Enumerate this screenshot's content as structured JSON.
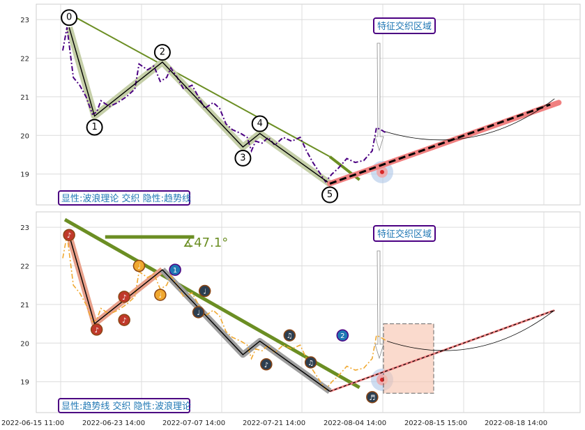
{
  "chart_data": [
    {
      "type": "line",
      "panel": "top",
      "x_tick_labels": [
        "2022-06-15 11:00",
        "2022-06-23 14:00",
        "2022-07-07 14:00",
        "2022-07-21 14:00",
        "2022-08-04 14:00",
        "2022-08-15 15:00",
        "2022-08-18 14:00"
      ],
      "y_ticks": [
        19,
        20,
        21,
        22,
        23
      ],
      "ylim": [
        18.2,
        23.4
      ],
      "grid": true,
      "label_box": "显性:波浪理论 交织 隐性:趋势线",
      "annotation": "特征交织区域",
      "wave_points": [
        {
          "label": "0",
          "x": 3,
          "y": 22.8
        },
        {
          "label": "1",
          "x": 15,
          "y": 20.5
        },
        {
          "label": "2",
          "x": 47,
          "y": 21.9
        },
        {
          "label": "3",
          "x": 85,
          "y": 19.7
        },
        {
          "label": "4",
          "x": 93,
          "y": 20.05
        },
        {
          "label": "5",
          "x": 126,
          "y": 18.75
        }
      ],
      "series": [
        {
          "values": [
            [
              0,
              22.2
            ],
            [
              2,
              22.8
            ],
            [
              5,
              21.5
            ],
            [
              8,
              21.3
            ],
            [
              11,
              21.0
            ],
            [
              14,
              20.55
            ],
            [
              16,
              20.6
            ],
            [
              18,
              20.9
            ],
            [
              22,
              20.75
            ],
            [
              26,
              20.85
            ],
            [
              30,
              21.0
            ],
            [
              34,
              21.2
            ],
            [
              36,
              21.85
            ],
            [
              40,
              21.7
            ],
            [
              43,
              21.8
            ],
            [
              46,
              21.4
            ],
            [
              49,
              21.5
            ],
            [
              51,
              21.75
            ],
            [
              54,
              21.5
            ],
            [
              57,
              21.2
            ],
            [
              61,
              21.3
            ],
            [
              64,
              21.0
            ],
            [
              67,
              20.7
            ],
            [
              71,
              20.85
            ],
            [
              74,
              20.7
            ],
            [
              77,
              20.3
            ],
            [
              80,
              20.15
            ],
            [
              84,
              20.05
            ],
            [
              87,
              19.95
            ],
            [
              89,
              19.6
            ],
            [
              91,
              19.85
            ],
            [
              94,
              19.8
            ],
            [
              97,
              19.95
            ],
            [
              100,
              19.75
            ],
            [
              104,
              19.95
            ],
            [
              108,
              19.85
            ],
            [
              112,
              19.95
            ],
            [
              115,
              19.6
            ],
            [
              118,
              19.3
            ],
            [
              121,
              19.05
            ],
            [
              124,
              18.8
            ],
            [
              127,
              19.0
            ],
            [
              130,
              19.15
            ],
            [
              134,
              19.4
            ],
            [
              138,
              19.3
            ],
            [
              142,
              19.35
            ],
            [
              146,
              19.6
            ],
            [
              148,
              20.2
            ],
            [
              150,
              20.15
            ],
            [
              153,
              20.05
            ]
          ]
        },
        {
          "name": "wave",
          "values": [
            [
              3,
              22.8
            ],
            [
              15,
              20.5
            ],
            [
              47,
              21.9
            ],
            [
              85,
              19.7
            ],
            [
              93,
              20.05
            ],
            [
              126,
              18.75
            ]
          ]
        }
      ]
    },
    {
      "type": "line",
      "panel": "bottom",
      "x_tick_labels": [
        "2022-06-15 11:00",
        "2022-06-23 14:00",
        "2022-07-07 14:00",
        "2022-07-21 14:00",
        "2022-08-04 14:00",
        "2022-08-15 15:00",
        "2022-08-18 14:00"
      ],
      "y_ticks": [
        19,
        20,
        21,
        22,
        23
      ],
      "ylim": [
        18.2,
        23.4
      ],
      "grid": true,
      "label_box": "显性:趋势线 交织 隐性:波浪理论",
      "annotation": "特征交织区域",
      "angle_label": "∡47.1°",
      "point_labels": [
        "1",
        "2"
      ]
    }
  ],
  "icons": {
    "note": "♪",
    "note2": "♩",
    "notes": "♬",
    "double": "♫"
  }
}
